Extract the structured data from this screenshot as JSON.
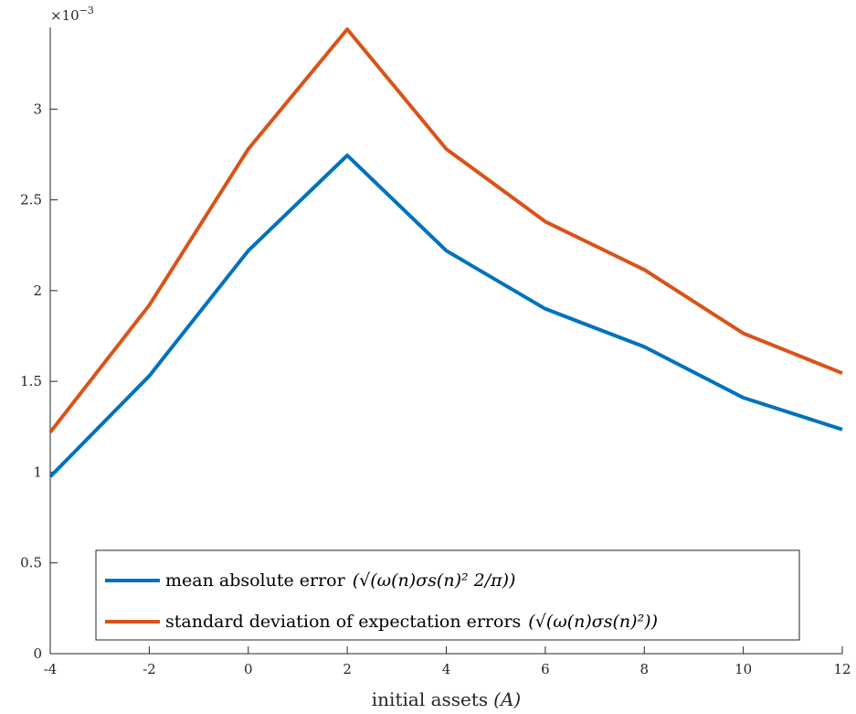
{
  "chart_data": {
    "type": "line",
    "title": "",
    "xlabel": "initial assets",
    "xlabel_symbol": "(A)",
    "ylabel": "",
    "y_exponent_label": "×10",
    "y_exponent_power": "−3",
    "xlim": [
      -4,
      12
    ],
    "ylim": [
      0,
      0.00345
    ],
    "x": [
      -4,
      -2,
      0,
      2,
      4,
      6,
      8,
      10,
      12
    ],
    "xticks": [
      -4,
      -2,
      0,
      2,
      4,
      6,
      8,
      10,
      12
    ],
    "xtick_labels": [
      "-4",
      "-2",
      "0",
      "2",
      "4",
      "6",
      "8",
      "10",
      "12"
    ],
    "yticks": [
      0,
      0.0005,
      0.001,
      0.0015,
      0.002,
      0.0025,
      0.003
    ],
    "ytick_labels": [
      "0",
      "0.5",
      "1",
      "1.5",
      "2",
      "2.5",
      "3"
    ],
    "grid": false,
    "legend_position": "bottom",
    "series": [
      {
        "name": "mean absolute error",
        "formula_text": "(√(ω(n)σs(n)² 2/π))",
        "color": "#0072BD",
        "values": [
          0.000975,
          0.00153,
          0.00222,
          0.002745,
          0.00222,
          0.0019,
          0.00169,
          0.00141,
          0.001235
        ]
      },
      {
        "name": "standard deviation of expectation errors",
        "formula_text": "(√(ω(n)σs(n)²))",
        "color": "#D95319",
        "values": [
          0.00122,
          0.00192,
          0.00278,
          0.00344,
          0.00278,
          0.00238,
          0.002115,
          0.001765,
          0.001545
        ]
      }
    ]
  }
}
